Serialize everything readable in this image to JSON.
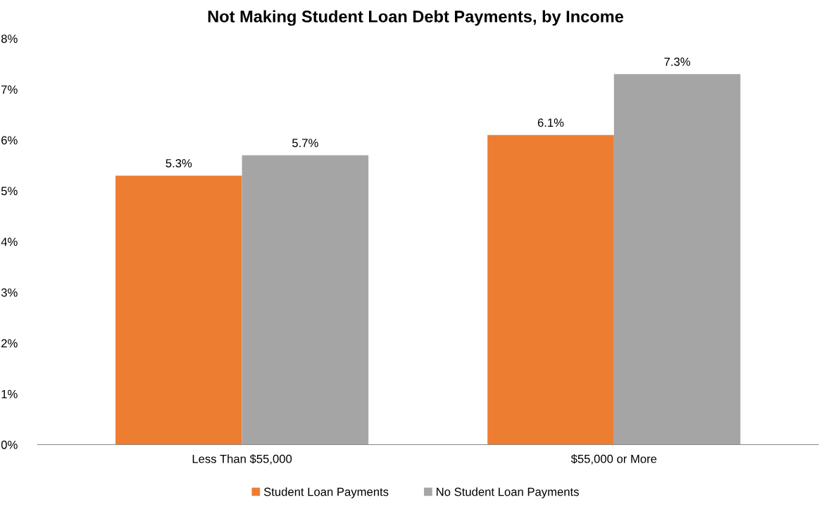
{
  "chart_data": {
    "type": "bar",
    "title": "Not Making Student Loan Debt Payments, by Income",
    "categories": [
      "Less Than $55,000",
      "$55,000 or More"
    ],
    "series": [
      {
        "name": "Student Loan Payments",
        "color": "#ed7d31",
        "values": [
          5.3,
          6.1
        ]
      },
      {
        "name": "No Student Loan Payments",
        "color": "#a5a5a5",
        "values": [
          5.7,
          7.3
        ]
      }
    ],
    "ylim": [
      0,
      8
    ],
    "yticks": [
      {
        "value": 0,
        "label": "0%"
      },
      {
        "value": 1,
        "label": "1%"
      },
      {
        "value": 2,
        "label": "2%"
      },
      {
        "value": 3,
        "label": "3%"
      },
      {
        "value": 4,
        "label": "4%"
      },
      {
        "value": 5,
        "label": "5%"
      },
      {
        "value": 6,
        "label": "6%"
      },
      {
        "value": 7,
        "label": "7%"
      },
      {
        "value": 8,
        "label": "8%"
      }
    ],
    "value_labels": [
      [
        "5.3%",
        "6.1%"
      ],
      [
        "5.7%",
        "7.3%"
      ]
    ],
    "grid": false,
    "legend": "bottom"
  }
}
